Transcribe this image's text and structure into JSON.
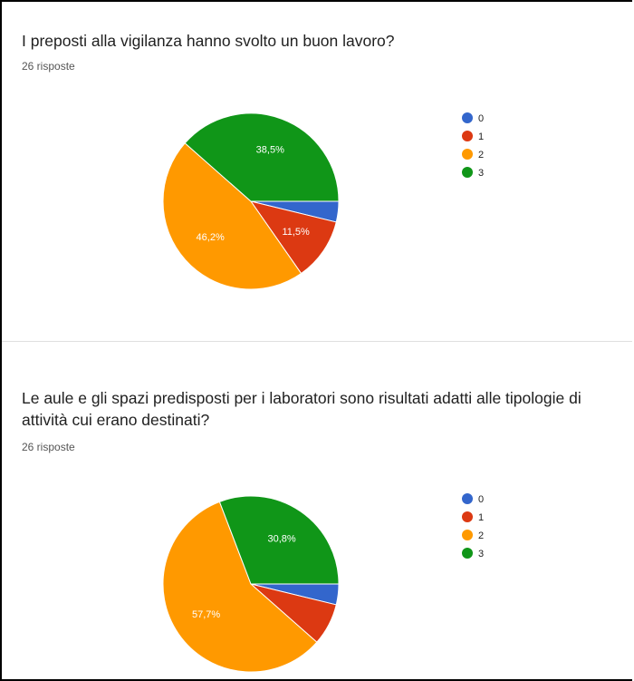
{
  "chart_data": [
    {
      "type": "pie",
      "title": "I preposti alla vigilanza hanno svolto un buon lavoro?",
      "subtitle": "26 risposte",
      "categories": [
        "0",
        "1",
        "2",
        "3"
      ],
      "values": [
        3.8,
        11.5,
        46.2,
        38.5
      ],
      "value_labels": [
        null,
        "11,5%",
        "46,2%",
        "38,5%"
      ],
      "colors": [
        "#3366cc",
        "#dc3912",
        "#ff9900",
        "#109618"
      ],
      "legend": "right"
    },
    {
      "type": "pie",
      "title": "Le aule e gli spazi predisposti per i laboratori sono risultati adatti alle tipologie di attività cui erano destinati?",
      "subtitle": "26 risposte",
      "categories": [
        "0",
        "1",
        "2",
        "3"
      ],
      "values": [
        3.8,
        7.7,
        57.7,
        30.8
      ],
      "value_labels": [
        null,
        null,
        "57,7%",
        "30,8%"
      ],
      "colors": [
        "#3366cc",
        "#dc3912",
        "#ff9900",
        "#109618"
      ],
      "legend": "right"
    }
  ]
}
